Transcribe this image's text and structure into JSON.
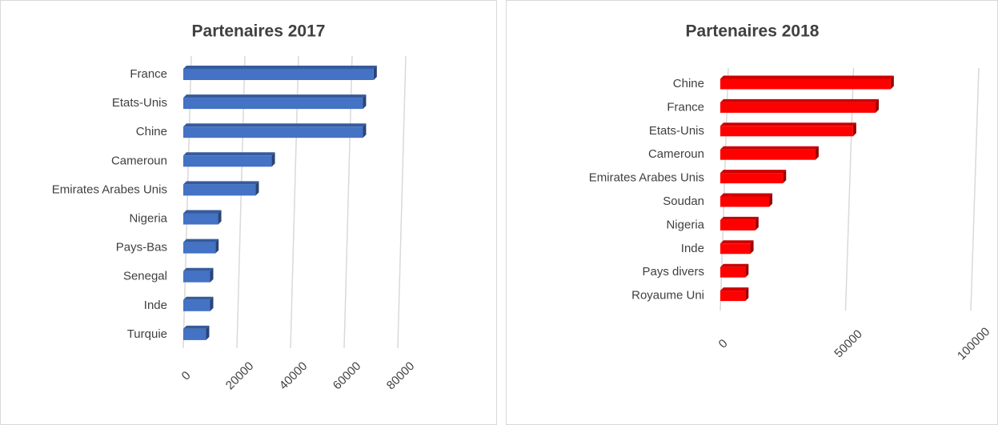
{
  "chart_data": [
    {
      "type": "bar",
      "orientation": "horizontal",
      "title": "Partenaires 2017",
      "categories": [
        "France",
        "Etats-Unis",
        "Chine",
        "Cameroun",
        "Emirates Arabes Unis",
        "Nigeria",
        "Pays-Bas",
        "Senegal",
        "Inde",
        "Turquie"
      ],
      "values": [
        71000,
        67000,
        67000,
        33000,
        27000,
        13000,
        12000,
        10000,
        10000,
        8500
      ],
      "color": "#4472c4",
      "xlim": [
        0,
        80000
      ],
      "xticks": [
        0,
        20000,
        40000,
        60000,
        80000
      ],
      "grid": true
    },
    {
      "type": "bar",
      "orientation": "horizontal",
      "title": "Partenaires 2018",
      "categories": [
        "Chine",
        "France",
        "Etats-Unis",
        "Cameroun",
        "Emirates Arabes Unis",
        "Soudan",
        "Nigeria",
        "Inde",
        "Pays divers",
        "Royaume Uni"
      ],
      "values": [
        68000,
        62000,
        53000,
        38000,
        25000,
        19500,
        14000,
        12000,
        10000,
        10000
      ],
      "color": "#ff0000",
      "xlim": [
        0,
        100000
      ],
      "xticks": [
        0,
        50000,
        100000
      ],
      "grid": true
    }
  ]
}
